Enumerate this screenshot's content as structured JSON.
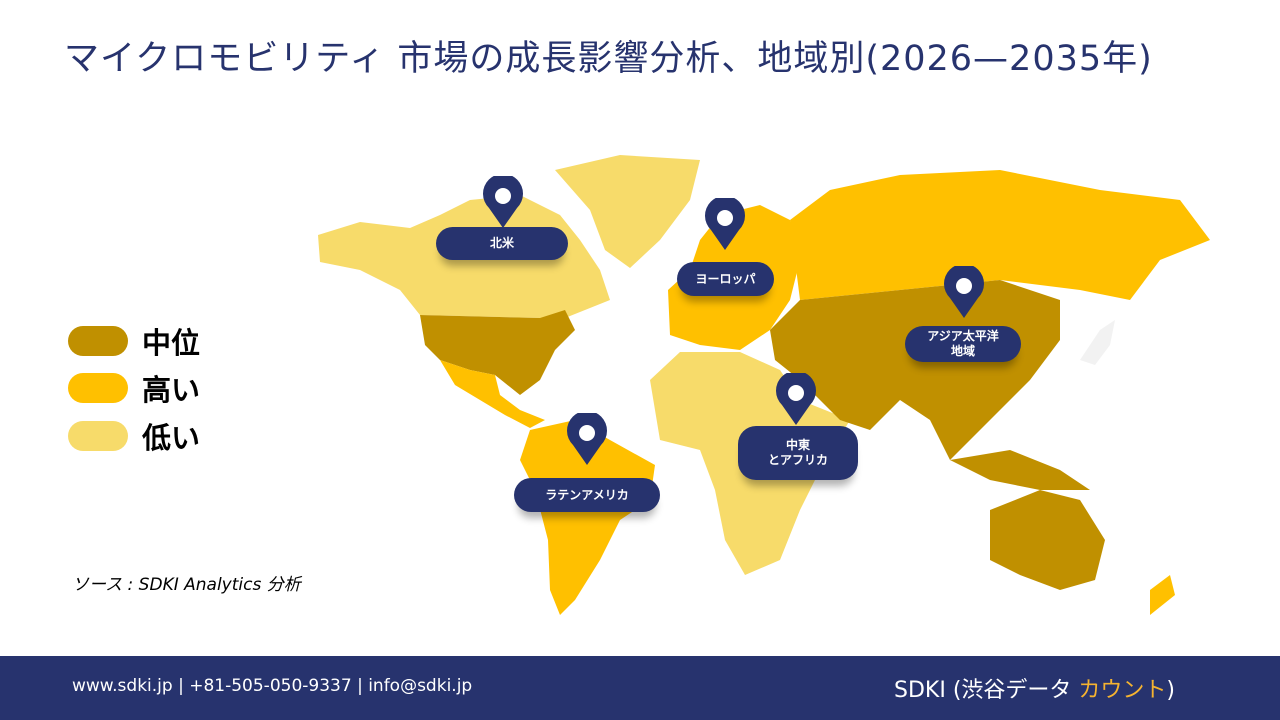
{
  "title": "マイクロモビリティ 市場の成長影響分析、地域別(2026—2035年)",
  "legend": [
    {
      "label": "中位",
      "color": "#C09000"
    },
    {
      "label": "高い",
      "color": "#FFC000"
    },
    {
      "label": "低い",
      "color": "#F7DB6A"
    }
  ],
  "source": "ソース : SDKI Analytics 分析",
  "regions": [
    {
      "label": "北米",
      "level": "低い"
    },
    {
      "label": "ヨーロッパ",
      "level": "高い"
    },
    {
      "label": "アジア太平洋\n地域",
      "level": "中位"
    },
    {
      "label": "中東\nとアフリカ",
      "level": "低い"
    },
    {
      "label": "ラテンアメリカ",
      "level": "高い"
    }
  ],
  "footer": {
    "contact": "www.sdki.jp | +81-505-050-9337 | info@sdki.jp",
    "brand_main": "SDKI (渋谷データ ",
    "brand_accent": "カウント",
    "brand_close": ")"
  },
  "colors": {
    "navy": "#27336E",
    "accent": "#F5B330"
  }
}
